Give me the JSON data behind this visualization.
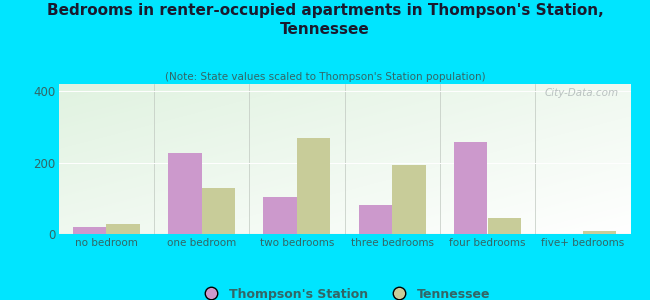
{
  "title": "Bedrooms in renter-occupied apartments in Thompson's Station,\nTennessee",
  "subtitle": "(Note: State values scaled to Thompson's Station population)",
  "categories": [
    "no bedroom",
    "one bedroom",
    "two bedrooms",
    "three bedrooms",
    "four bedrooms",
    "five+ bedrooms"
  ],
  "thompson_values": [
    20,
    228,
    105,
    80,
    258,
    0
  ],
  "tennessee_values": [
    27,
    130,
    268,
    193,
    45,
    8
  ],
  "thompson_color": "#cc99cc",
  "tennessee_color": "#c8cc99",
  "background_outer": "#00e5ff",
  "ylim": [
    0,
    420
  ],
  "yticks": [
    0,
    200,
    400
  ],
  "bar_width": 0.35,
  "legend_thompson": "Thompson's Station",
  "legend_tennessee": "Tennessee",
  "watermark": "City-Data.com",
  "title_color": "#1a1a2e",
  "subtitle_color": "#336666",
  "tick_color": "#336666"
}
